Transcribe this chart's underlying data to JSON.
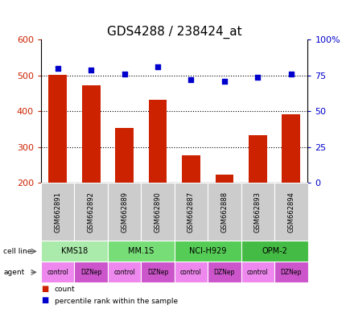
{
  "title": "GDS4288 / 238424_at",
  "samples": [
    "GSM662891",
    "GSM662892",
    "GSM662889",
    "GSM662890",
    "GSM662887",
    "GSM662888",
    "GSM662893",
    "GSM662894"
  ],
  "counts": [
    502,
    472,
    354,
    432,
    278,
    224,
    333,
    392
  ],
  "percentile_ranks": [
    80,
    79,
    76,
    81,
    72,
    71,
    74,
    76
  ],
  "cell_lines": [
    {
      "name": "KMS18",
      "span": [
        0,
        2
      ],
      "color": "#AAEAAA"
    },
    {
      "name": "MM.1S",
      "span": [
        2,
        4
      ],
      "color": "#77DD77"
    },
    {
      "name": "NCI-H929",
      "span": [
        4,
        6
      ],
      "color": "#55CC55"
    },
    {
      "name": "OPM-2",
      "span": [
        6,
        8
      ],
      "color": "#44BB44"
    }
  ],
  "agents": [
    "control",
    "DZNep",
    "control",
    "DZNep",
    "control",
    "DZNep",
    "control",
    "DZNep"
  ],
  "agent_color_control": "#EE88EE",
  "agent_color_dznep": "#CC55CC",
  "bar_color": "#CC2200",
  "marker_color": "#0000CC",
  "ylim_left": [
    200,
    600
  ],
  "yticks_left": [
    200,
    300,
    400,
    500,
    600
  ],
  "ylim_right": [
    0,
    100
  ],
  "ytick_labels_right": [
    "0",
    "25",
    "50",
    "75",
    "100%"
  ],
  "yticks_right": [
    0,
    25,
    50,
    75,
    100
  ],
  "hlines": [
    300,
    400,
    500
  ],
  "bar_width": 0.55,
  "tick_label_color_left": "#CC2200",
  "tick_label_color_right": "#0000CC",
  "sample_box_color": "#CCCCCC",
  "label_fontsize": 7,
  "tick_fontsize": 8,
  "title_fontsize": 11
}
